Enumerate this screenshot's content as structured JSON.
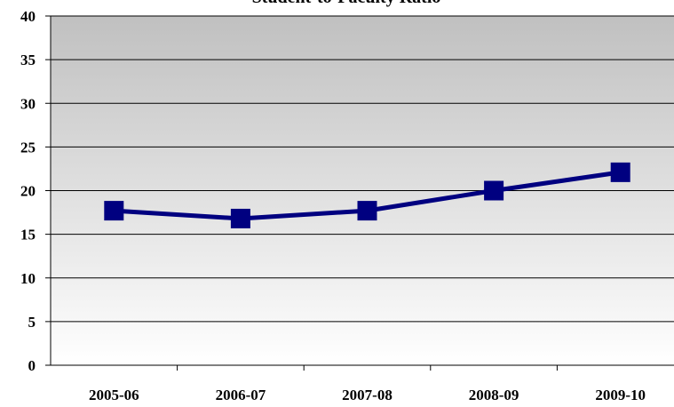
{
  "chart_data": {
    "type": "line",
    "title": "Student-to-Faculty Ratio",
    "categories": [
      "2005-06",
      "2006-07",
      "2007-08",
      "2008-09",
      "2009-10"
    ],
    "series": [
      {
        "name": "Student-to-Faculty Ratio",
        "color": "#000080",
        "values": [
          17.7,
          16.8,
          17.7,
          20.0,
          22.1
        ]
      }
    ],
    "ylim": [
      0,
      40
    ],
    "yticks": [
      0,
      5,
      10,
      15,
      20,
      25,
      30,
      35,
      40
    ],
    "grid": true
  }
}
